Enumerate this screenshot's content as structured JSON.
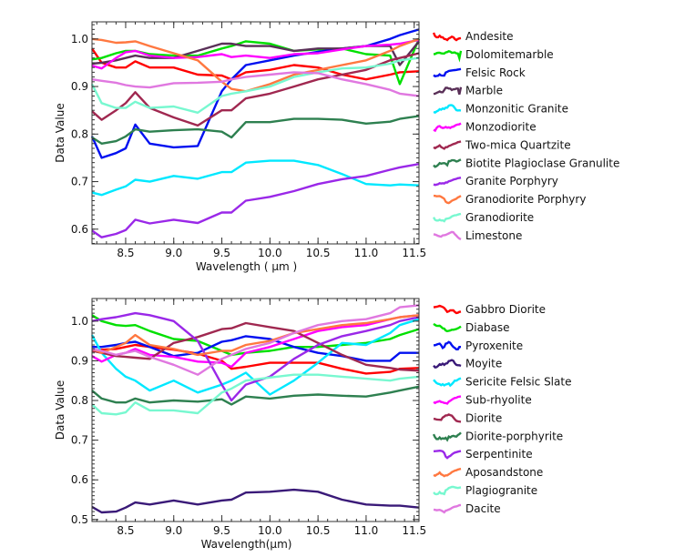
{
  "chart_data": [
    {
      "type": "line",
      "title": "",
      "xlabel": "Wavelength ( μm )",
      "ylabel": "Data Value",
      "xlim": [
        8.15,
        11.55
      ],
      "ylim": [
        0.569,
        1.036
      ],
      "xticks": [
        8.5,
        9.0,
        9.5,
        10.0,
        10.5,
        11.0,
        11.5
      ],
      "xtick_labels": [
        "8.5",
        "9.0",
        "9.5",
        "10.0",
        "10.5",
        "11.0",
        "11.5"
      ],
      "yticks": [
        0.6,
        0.7,
        0.8,
        0.9,
        1.0
      ],
      "ytick_labels": [
        "0.6",
        "0.7",
        "0.8",
        "0.9",
        "1.0"
      ],
      "legend_position": "right",
      "x": [
        8.15,
        8.25,
        8.4,
        8.5,
        8.6,
        8.75,
        9.0,
        9.25,
        9.5,
        9.6,
        9.75,
        10.0,
        10.25,
        10.5,
        10.75,
        11.0,
        11.25,
        11.35,
        11.55
      ],
      "series": [
        {
          "name": "Andesite",
          "color": "#ff0000",
          "values": [
            0.98,
            0.95,
            0.94,
            0.94,
            0.953,
            0.94,
            0.94,
            0.925,
            0.923,
            0.915,
            0.93,
            0.935,
            0.945,
            0.94,
            0.925,
            0.915,
            0.925,
            0.93,
            0.932
          ]
        },
        {
          "name": "Dolomitemarble",
          "color": "#00e000",
          "values": [
            0.957,
            0.96,
            0.97,
            0.975,
            0.975,
            0.968,
            0.965,
            0.965,
            0.98,
            0.985,
            0.995,
            0.99,
            0.975,
            0.978,
            0.98,
            0.968,
            0.965,
            0.905,
            1.0
          ]
        },
        {
          "name": "Felsic Rock",
          "color": "#0010f0",
          "values": [
            0.795,
            0.75,
            0.76,
            0.77,
            0.82,
            0.78,
            0.772,
            0.775,
            0.89,
            0.915,
            0.945,
            0.955,
            0.965,
            0.973,
            0.98,
            0.985,
            1.0,
            1.008,
            1.02
          ]
        },
        {
          "name": "Marble",
          "color": "#5a3058",
          "values": [
            0.948,
            0.95,
            0.955,
            0.96,
            0.965,
            0.96,
            0.96,
            0.975,
            0.99,
            0.99,
            0.985,
            0.985,
            0.975,
            0.98,
            0.98,
            0.985,
            0.985,
            0.945,
            0.995
          ]
        },
        {
          "name": "Monzonitic Granite",
          "color": "#00e8ff",
          "values": [
            0.677,
            0.672,
            0.683,
            0.69,
            0.704,
            0.7,
            0.712,
            0.706,
            0.72,
            0.72,
            0.74,
            0.744,
            0.744,
            0.735,
            0.716,
            0.695,
            0.692,
            0.694,
            0.692
          ]
        },
        {
          "name": "Monzodiorite",
          "color": "#ff00ff",
          "values": [
            0.944,
            0.938,
            0.96,
            0.972,
            0.975,
            0.965,
            0.96,
            0.962,
            0.968,
            0.962,
            0.965,
            0.96,
            0.968,
            0.97,
            0.978,
            0.985,
            0.988,
            0.99,
            0.998
          ]
        },
        {
          "name": "Two-mica Quartzite",
          "color": "#a02850",
          "values": [
            0.848,
            0.83,
            0.85,
            0.865,
            0.888,
            0.855,
            0.835,
            0.818,
            0.85,
            0.85,
            0.875,
            0.885,
            0.9,
            0.915,
            0.925,
            0.935,
            0.955,
            0.96,
            0.97
          ]
        },
        {
          "name": "Biotite Plagioclase Granulite",
          "color": "#2e8050",
          "values": [
            0.793,
            0.78,
            0.785,
            0.795,
            0.81,
            0.805,
            0.808,
            0.81,
            0.805,
            0.793,
            0.825,
            0.825,
            0.832,
            0.832,
            0.83,
            0.822,
            0.826,
            0.832,
            0.838
          ]
        },
        {
          "name": "Granite Porphyry",
          "color": "#9a28e8",
          "values": [
            0.597,
            0.583,
            0.59,
            0.598,
            0.62,
            0.612,
            0.62,
            0.613,
            0.635,
            0.635,
            0.66,
            0.668,
            0.68,
            0.695,
            0.705,
            0.712,
            0.725,
            0.73,
            0.737
          ]
        },
        {
          "name": "Granodiorite Porphyry",
          "color": "#ff7840",
          "values": [
            1.0,
            0.998,
            0.992,
            0.993,
            0.995,
            0.985,
            0.97,
            0.955,
            0.91,
            0.895,
            0.89,
            0.905,
            0.925,
            0.935,
            0.945,
            0.955,
            0.975,
            0.985,
            1.0
          ]
        },
        {
          "name": "Granodiorite",
          "color": "#78f8d0",
          "values": [
            0.905,
            0.865,
            0.855,
            0.855,
            0.868,
            0.855,
            0.858,
            0.845,
            0.88,
            0.885,
            0.89,
            0.9,
            0.92,
            0.93,
            0.938,
            0.94,
            0.948,
            0.955,
            0.96
          ]
        },
        {
          "name": "Limestone",
          "color": "#e078e0",
          "values": [
            0.915,
            0.912,
            0.908,
            0.903,
            0.9,
            0.898,
            0.907,
            0.908,
            0.91,
            0.915,
            0.92,
            0.925,
            0.93,
            0.928,
            0.915,
            0.905,
            0.893,
            0.885,
            0.88
          ]
        }
      ]
    },
    {
      "type": "line",
      "title": "",
      "xlabel": "Wavelength(μm)",
      "ylabel": "Data Value",
      "xlim": [
        8.15,
        11.55
      ],
      "ylim": [
        0.495,
        1.057
      ],
      "xticks": [
        8.5,
        9.0,
        9.5,
        10.0,
        10.5,
        11.0,
        11.5
      ],
      "xtick_labels": [
        "8.5",
        "9.0",
        "9.5",
        "10.0",
        "10.5",
        "11.0",
        "11.5"
      ],
      "yticks": [
        0.5,
        0.6,
        0.7,
        0.8,
        0.9,
        1.0
      ],
      "ytick_labels": [
        "0.5",
        "0.6",
        "0.7",
        "0.8",
        "0.9",
        "1.0"
      ],
      "legend_position": "right",
      "x": [
        8.15,
        8.25,
        8.4,
        8.5,
        8.6,
        8.75,
        9.0,
        9.25,
        9.5,
        9.6,
        9.75,
        10.0,
        10.25,
        10.5,
        10.75,
        11.0,
        11.25,
        11.35,
        11.55
      ],
      "series": [
        {
          "name": "Gabbro Diorite",
          "color": "#ff0000",
          "values": [
            0.925,
            0.928,
            0.93,
            0.935,
            0.94,
            0.935,
            0.928,
            0.918,
            0.9,
            0.88,
            0.885,
            0.895,
            0.895,
            0.895,
            0.88,
            0.868,
            0.872,
            0.88,
            0.882
          ]
        },
        {
          "name": "Diabase",
          "color": "#00e000",
          "values": [
            1.015,
            1.0,
            0.99,
            0.988,
            0.99,
            0.975,
            0.955,
            0.95,
            0.925,
            0.915,
            0.92,
            0.925,
            0.935,
            0.935,
            0.94,
            0.945,
            0.955,
            0.965,
            0.98
          ]
        },
        {
          "name": "Pyroxenite",
          "color": "#0010f0",
          "values": [
            0.935,
            0.935,
            0.94,
            0.945,
            0.948,
            0.935,
            0.912,
            0.92,
            0.948,
            0.952,
            0.962,
            0.955,
            0.935,
            0.92,
            0.912,
            0.9,
            0.9,
            0.92,
            0.92
          ]
        },
        {
          "name": "Moyite",
          "color": "#3a1a78",
          "values": [
            0.532,
            0.518,
            0.52,
            0.53,
            0.543,
            0.538,
            0.548,
            0.538,
            0.548,
            0.55,
            0.568,
            0.57,
            0.575,
            0.57,
            0.55,
            0.538,
            0.535,
            0.535,
            0.53
          ]
        },
        {
          "name": "Sericite Felsic Slate",
          "color": "#00e8ff",
          "values": [
            0.965,
            0.92,
            0.88,
            0.86,
            0.85,
            0.825,
            0.85,
            0.82,
            0.84,
            0.85,
            0.87,
            0.815,
            0.85,
            0.895,
            0.945,
            0.94,
            0.97,
            0.99,
            1.005
          ]
        },
        {
          "name": "Sub-rhyolite",
          "color": "#ff00ff",
          "values": [
            0.912,
            0.898,
            0.915,
            0.92,
            0.93,
            0.915,
            0.91,
            0.898,
            0.895,
            0.885,
            0.92,
            0.935,
            0.955,
            0.975,
            0.985,
            0.99,
            1.005,
            1.01,
            1.015
          ]
        },
        {
          "name": "Diorite",
          "color": "#a02850",
          "values": [
            0.925,
            0.92,
            0.912,
            0.91,
            0.908,
            0.905,
            0.945,
            0.96,
            0.98,
            0.982,
            0.995,
            0.985,
            0.975,
            0.945,
            0.915,
            0.89,
            0.882,
            0.878,
            0.875
          ]
        },
        {
          "name": "Diorite-porphyrite",
          "color": "#2e8050",
          "values": [
            0.825,
            0.805,
            0.795,
            0.795,
            0.805,
            0.795,
            0.8,
            0.797,
            0.803,
            0.79,
            0.81,
            0.805,
            0.812,
            0.815,
            0.812,
            0.81,
            0.82,
            0.825,
            0.835
          ]
        },
        {
          "name": "Serpentinite",
          "color": "#9a28e8",
          "values": [
            1.0,
            1.005,
            1.01,
            1.015,
            1.02,
            1.015,
            1.0,
            0.95,
            0.84,
            0.8,
            0.84,
            0.86,
            0.905,
            0.94,
            0.962,
            0.975,
            0.99,
            1.0,
            1.01
          ]
        },
        {
          "name": "Aposandstone",
          "color": "#ff7840",
          "values": [
            0.93,
            0.92,
            0.935,
            0.945,
            0.965,
            0.94,
            0.93,
            0.915,
            0.925,
            0.925,
            0.94,
            0.95,
            0.97,
            0.98,
            0.99,
            0.995,
            1.005,
            1.01,
            1.015
          ]
        },
        {
          "name": "Plagiogranite",
          "color": "#78f8d0",
          "values": [
            0.79,
            0.768,
            0.765,
            0.77,
            0.795,
            0.775,
            0.775,
            0.768,
            0.82,
            0.83,
            0.85,
            0.858,
            0.865,
            0.865,
            0.86,
            0.855,
            0.85,
            0.855,
            0.86
          ]
        },
        {
          "name": "Dacite",
          "color": "#e078e0",
          "values": [
            0.93,
            0.925,
            0.915,
            0.92,
            0.925,
            0.91,
            0.89,
            0.865,
            0.905,
            0.915,
            0.93,
            0.945,
            0.97,
            0.99,
            1.0,
            1.005,
            1.02,
            1.035,
            1.04
          ]
        }
      ]
    }
  ]
}
